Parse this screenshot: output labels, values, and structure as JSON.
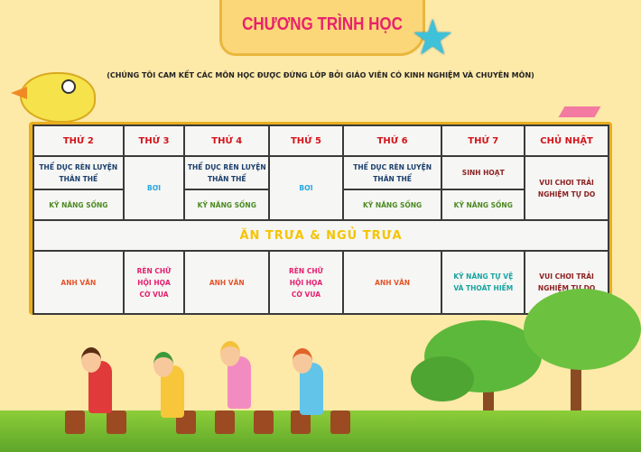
{
  "header": {
    "title": "CHƯƠNG TRÌNH HỌC",
    "subtitle": "(CHÚNG TÔI CAM KẾT CÁC MÔN HỌC ĐƯỢC ĐỨNG LỚP BỞI GIÁO VIÊN CÓ KINH NGHIỆM VÀ CHUYÊN MÔN)"
  },
  "schedule": {
    "days": [
      "THỨ 2",
      "THỨ 3",
      "THỨ 4",
      "THỨ 5",
      "THỨ 6",
      "THỨ 7",
      "CHỦ NHẬT"
    ],
    "morning": {
      "mon": [
        "THỂ DỤC RÈN LUYỆN THÂN THỂ",
        "KỸ NĂNG SỐNG"
      ],
      "tue": "BƠI",
      "wed": [
        "THỂ DỤC RÈN LUYỆN THÂN THỂ",
        "KỸ NĂNG SỐNG"
      ],
      "thu": "BƠI",
      "fri": [
        "THỂ DỤC RÈN LUYỆN THÂN THỂ",
        "KỸ NĂNG SỐNG"
      ],
      "sat": [
        "SINH HOẠT",
        "KỸ NĂNG SỐNG"
      ],
      "sun": "VUI CHƠI TRẢI NGHIỆM TỰ DO"
    },
    "lunch": "ĂN TRƯA & NGỦ TRƯA",
    "afternoon": {
      "mon": "ANH VĂN",
      "tue": [
        "RÈN CHỮ",
        "HỘI HỌA",
        "CỜ VUA"
      ],
      "wed": "ANH VĂN",
      "thu": [
        "RÈN CHỮ",
        "HỘI HỌA",
        "CỜ VUA"
      ],
      "fri": "ANH VĂN",
      "sat": "KỸ NĂNG TỰ VỆ VÀ THOÁT HIỂM",
      "sun": "VUI CHƠI TRẢI NGHIỆM TỰ DO"
    }
  },
  "colors": {
    "background": "#fde9a8",
    "frame": "#e9ad1e",
    "day_header": "#d4141b",
    "lunch": "#f5c400",
    "title": "#e8226a"
  }
}
